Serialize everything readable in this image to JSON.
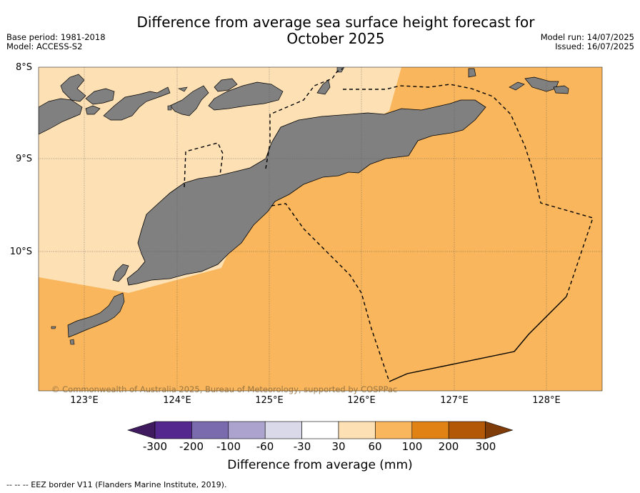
{
  "title_line1": "Difference from average sea surface height forecast for",
  "title_line2": "October 2025",
  "base_period": "Base period: 1981-2018",
  "model": "Model: ACCESS-S2",
  "model_run": "Model run: 14/07/2025",
  "issued": "Issued: 16/07/2025",
  "lat_labels": [
    "8°S",
    "9°S",
    "10°S"
  ],
  "lon_labels": [
    "123°E",
    "124°E",
    "125°E",
    "126°E",
    "127°E",
    "128°E"
  ],
  "copyright": "© Commonwealth of Australia 2025, Bureau of Meteorology, supported by COSPPac",
  "colorbar": {
    "ticks": [
      "-300",
      "-200",
      "-100",
      "-60",
      "-30",
      "30",
      "60",
      "100",
      "200",
      "300"
    ],
    "colors": [
      "#3f1a5e",
      "#54278f",
      "#7a6aae",
      "#aca4cf",
      "#d9d9ea",
      "#ffffff",
      "#fde0b4",
      "#f9b65d",
      "#e08214",
      "#b35806",
      "#7f3b08"
    ],
    "label": "Difference from average (mm)"
  },
  "footnote": "--  --  -- EEZ border V11 (Flanders Marine Institute, 2019)."
}
